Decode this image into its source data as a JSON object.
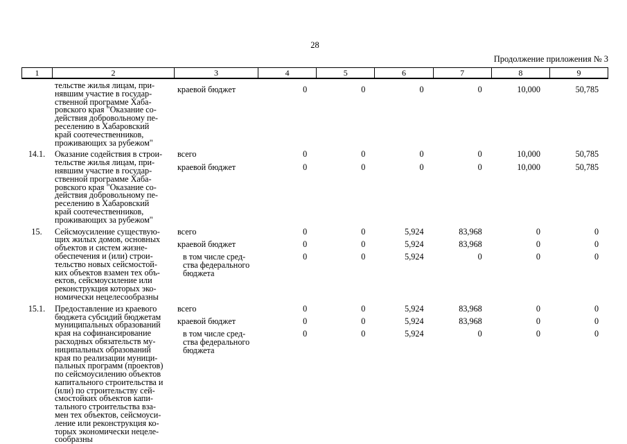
{
  "page": {
    "number": "28",
    "continuation": "Продолжение приложения № 3"
  },
  "table": {
    "headers": [
      "1",
      "2",
      "3",
      "4",
      "5",
      "6",
      "7",
      "8",
      "9"
    ],
    "rows": [
      {
        "num": "",
        "offset": true,
        "name": "тельстве жилья лицам, при-\nнявшим участие в государ-\nственной программе Хаба-\nровского края \"Оказание со-\nдействия добровольному пе-\nреселению в Хабаровский\nкрай соотечественников,\nпроживающих за рубежом\"",
        "lines": [
          {
            "label": "краевой бюджет",
            "indent": false,
            "values": [
              "0",
              "0",
              "0",
              "0",
              "10,000",
              "50,785"
            ]
          }
        ]
      },
      {
        "num": "14.1.",
        "offset": false,
        "name": "Оказание содействия в строи-\nтельстве жилья лицам, при-\nнявшим участие в государ-\nственной программе Хаба-\nровского края \"Оказание со-\nдействия добровольному пе-\nреселению в Хабаровский\nкрай соотечественников,\nпроживающих за рубежом\"",
        "lines": [
          {
            "label": "всего",
            "indent": false,
            "values": [
              "0",
              "0",
              "0",
              "0",
              "10,000",
              "50,785"
            ]
          },
          {
            "label": "краевой бюджет",
            "indent": false,
            "values": [
              "0",
              "0",
              "0",
              "0",
              "10,000",
              "50,785"
            ]
          }
        ]
      },
      {
        "num": "15.",
        "offset": false,
        "name": "Сейсмоусиление существую-\nщих жилых домов, основных\nобъектов и систем жизне-\nобеспечения и (или) строи-\nтельство новых сейсмостой-\nких объектов взамен тех объ-\nектов, сейсмоусиление или\nреконструкция которых эко-\nномически нецелесообразны",
        "lines": [
          {
            "label": "всего",
            "indent": false,
            "values": [
              "0",
              "0",
              "5,924",
              "83,968",
              "0",
              "0"
            ]
          },
          {
            "label": "краевой бюджет",
            "indent": false,
            "values": [
              "0",
              "0",
              "5,924",
              "83,968",
              "0",
              "0"
            ]
          },
          {
            "label": "в том числе сред-\nства федерального\nбюджета",
            "indent": true,
            "values": [
              "0",
              "0",
              "5,924",
              "0",
              "0",
              "0"
            ]
          }
        ]
      },
      {
        "num": "15.1.",
        "offset": false,
        "name": "Предоставление из краевого\nбюджета субсидий бюджетам\nмуниципальных образований\nкрая на софинансирование\nрасходных обязательств му-\nниципальных образований\nкрая по реализации муници-\nпальных программ (проектов)\nпо сейсмоусилению объектов\nкапитального строительства и\n(или) по строительству сей-\nсмостойких объектов капи-\nтального строительства вза-\nмен тех объектов, сейсмоуси-\nление или реконструкция ко-\nторых экономически нецеле-\nсообразны",
        "lines": [
          {
            "label": "всего",
            "indent": false,
            "values": [
              "0",
              "0",
              "5,924",
              "83,968",
              "0",
              "0"
            ]
          },
          {
            "label": "краевой бюджет",
            "indent": false,
            "values": [
              "0",
              "0",
              "5,924",
              "83,968",
              "0",
              "0"
            ]
          },
          {
            "label": "в том числе сред-\nства федерального\nбюджета",
            "indent": true,
            "values": [
              "0",
              "0",
              "5,924",
              "0",
              "0",
              "0"
            ]
          }
        ]
      }
    ]
  }
}
